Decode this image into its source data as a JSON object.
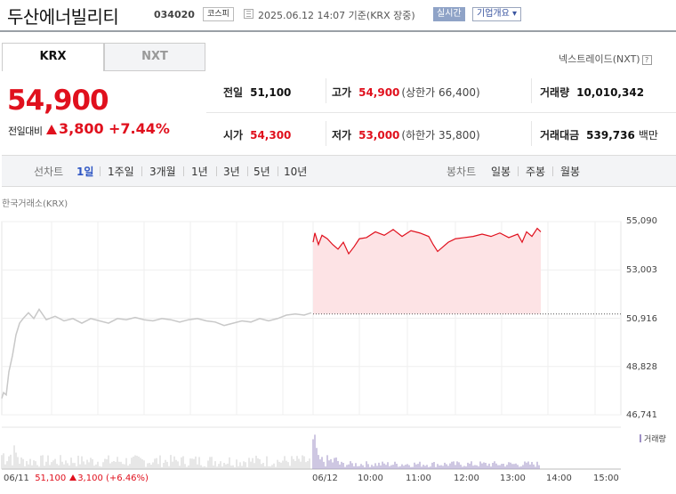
{
  "header": {
    "company": "두산에너빌리티",
    "code": "034020",
    "market": "코스피",
    "as_of": "2025.06.12 14:07 기준(KRX 장중)",
    "realtime": "실시간",
    "overview": "기업개요 ▾"
  },
  "tabs": {
    "krx": "KRX",
    "nxt": "NXT"
  },
  "nextrade": {
    "label": "넥스트레이드(NXT)",
    "help": "?"
  },
  "quote": {
    "price": "54,900",
    "change_label": "전일대비",
    "change": "3,800",
    "change_pct": "+7.44%"
  },
  "stats": {
    "prev_close": {
      "label": "전일",
      "value": "51,100"
    },
    "high": {
      "label": "고가",
      "value": "54,900",
      "sub": "(상한가 66,400)"
    },
    "volume": {
      "label": "거래량",
      "value": "10,010,342"
    },
    "open": {
      "label": "시가",
      "value": "54,300"
    },
    "low": {
      "label": "저가",
      "value": "53,000",
      "sub": "(하한가 35,800)"
    },
    "amount": {
      "label": "거래대금",
      "value": "539,736",
      "unit": "백만"
    }
  },
  "periods": {
    "line_label": "선차트",
    "items": [
      "1일",
      "1주일",
      "3개월",
      "1년",
      "3년",
      "5년",
      "10년"
    ],
    "active": "1일",
    "candle_label": "봉차트",
    "candle_items": [
      "일봉",
      "주봉",
      "월봉"
    ]
  },
  "chart_source": "한국거래소(KRX)",
  "chart_data": {
    "type": "line",
    "y_ticks": [
      "55,090",
      "53,003",
      "50,916",
      "48,828",
      "46,741"
    ],
    "ylim": [
      46741,
      55090
    ],
    "x_ticks": [
      "06/11",
      "06/12",
      "10:00",
      "11:00",
      "12:00",
      "13:00",
      "14:00",
      "15:00"
    ],
    "reference_line": 51100,
    "series": [
      {
        "x": [
          0,
          2,
          5,
          8,
          12,
          16,
          20,
          24,
          30,
          36,
          42,
          50,
          60,
          70,
          80,
          90,
          100,
          110,
          120,
          130,
          140,
          150,
          160,
          170,
          180,
          190,
          200,
          210,
          220,
          230,
          240,
          250,
          260,
          270,
          280,
          290,
          300,
          310,
          320,
          330,
          340,
          348
        ],
        "values": [
          47450,
          47700,
          47600,
          48600,
          49300,
          50200,
          50700,
          50900,
          51150,
          50900,
          51300,
          50850,
          51000,
          50800,
          50900,
          50700,
          50900,
          50800,
          50700,
          50900,
          50850,
          50950,
          50850,
          50800,
          50900,
          50850,
          50750,
          50850,
          50900,
          50800,
          50750,
          50600,
          50700,
          50800,
          50750,
          50900,
          50800,
          50900,
          51050,
          51100,
          51050,
          51150
        ]
      },
      {
        "x": [
          350,
          352,
          356,
          360,
          366,
          372,
          378,
          384,
          390,
          396,
          402,
          410,
          420,
          430,
          440,
          450,
          460,
          470,
          480,
          485,
          490,
          496,
          502,
          510,
          520,
          530,
          540,
          550,
          560,
          570,
          580,
          585,
          590,
          596,
          602,
          606
        ],
        "values": [
          54200,
          54600,
          54100,
          54500,
          54350,
          54100,
          53900,
          54200,
          53700,
          54000,
          54350,
          54400,
          54650,
          54500,
          54750,
          54450,
          54700,
          54600,
          54450,
          54100,
          53800,
          54000,
          54200,
          54350,
          54400,
          54450,
          54550,
          54450,
          54600,
          54400,
          54550,
          54200,
          54650,
          54450,
          54800,
          54650
        ]
      }
    ],
    "volume_label": "거래량"
  },
  "day_summary": {
    "date": "06/11",
    "price": "51,100",
    "change": "3,100 (+6.46%)"
  }
}
